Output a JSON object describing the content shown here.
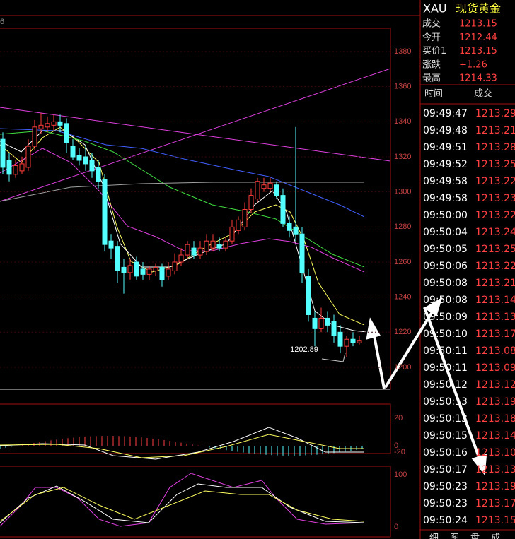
{
  "corner_label": "6",
  "header": {
    "symbol": "XAU",
    "name": "现货黄金"
  },
  "quote": [
    {
      "label": "成交",
      "value": "1213.15"
    },
    {
      "label": "今开",
      "value": "1212.44"
    },
    {
      "label": "买价1",
      "value": "1213.15"
    },
    {
      "label": "涨跌",
      "value": "+1.26"
    },
    {
      "label": "最高",
      "value": "1214.33"
    }
  ],
  "trades": {
    "columns": [
      "时间",
      "成交"
    ],
    "rows": [
      [
        "09:49:47",
        "1213.29"
      ],
      [
        "09:49:48",
        "1213.21"
      ],
      [
        "09:49:51",
        "1213.28"
      ],
      [
        "09:49:52",
        "1213.25"
      ],
      [
        "09:49:58",
        "1213.22"
      ],
      [
        "09:49:58",
        "1213.23"
      ],
      [
        "09:50:00",
        "1213.22"
      ],
      [
        "09:50:04",
        "1213.24"
      ],
      [
        "09:50:05",
        "1213.25"
      ],
      [
        "09:50:06",
        "1213.22"
      ],
      [
        "09:50:08",
        "1213.21"
      ],
      [
        "09:50:08",
        "1213.14"
      ],
      [
        "09:50:09",
        "1213.13"
      ],
      [
        "09:50:10",
        "1213.17"
      ],
      [
        "09:50:11",
        "1213.08"
      ],
      [
        "09:50:11",
        "1213.09"
      ],
      [
        "09:50:12",
        "1213.12"
      ],
      [
        "09:50:13",
        "1213.19"
      ],
      [
        "09:50:13",
        "1213.18"
      ],
      [
        "09:50:15",
        "1213.14"
      ],
      [
        "09:50:16",
        "1213.10"
      ],
      [
        "09:50:17",
        "1213.13"
      ],
      [
        "09:50:23",
        "1213.19"
      ],
      [
        "09:50:23",
        "1213.17"
      ],
      [
        "09:50:24",
        "1213.15"
      ]
    ]
  },
  "tabs": [
    "细",
    "图",
    "盘",
    "成"
  ],
  "chart_data": {
    "type": "candlestick",
    "ylim": [
      1187.5,
      1393.3
    ],
    "yticks": [
      1200,
      1220,
      1240,
      1260,
      1280,
      1300,
      1320,
      1340,
      1360,
      1380
    ],
    "grid": true,
    "up_color": "#ff3c3c",
    "down_color": "#54ffff",
    "open": [
      1330,
      1318,
      1310,
      1312,
      1314,
      1326,
      1336,
      1337,
      1338,
      1340,
      1339,
      1326,
      1321,
      1320,
      1318,
      1314,
      1307,
      1272,
      1269,
      1257,
      1254,
      1260,
      1256,
      1253,
      1255,
      1257,
      1252,
      1255,
      1260,
      1264,
      1268,
      1264,
      1266,
      1268,
      1270,
      1268,
      1272,
      1278,
      1280,
      1290,
      1296,
      1302,
      1302,
      1304,
      1298,
      1282,
      1280,
      1276,
      1252,
      1228,
      1222,
      1228,
      1226,
      1220,
      1212,
      1216,
      1214
    ],
    "close": [
      1314,
      1310,
      1315,
      1316,
      1326,
      1337,
      1338,
      1339,
      1340,
      1338,
      1328,
      1320,
      1318,
      1316,
      1312,
      1306,
      1270,
      1268,
      1255,
      1254,
      1258,
      1252,
      1253,
      1256,
      1257,
      1250,
      1256,
      1260,
      1264,
      1270,
      1264,
      1268,
      1272,
      1272,
      1268,
      1272,
      1280,
      1284,
      1290,
      1298,
      1306,
      1304,
      1305,
      1298,
      1282,
      1278,
      1276,
      1254,
      1230,
      1222,
      1228,
      1224,
      1218,
      1212,
      1216,
      1214,
      1215
    ],
    "high": [
      1334,
      1322,
      1318,
      1320,
      1330,
      1341,
      1345,
      1343,
      1344,
      1344,
      1342,
      1330,
      1325,
      1326,
      1322,
      1318,
      1310,
      1276,
      1272,
      1262,
      1262,
      1263,
      1260,
      1258,
      1259,
      1259,
      1260,
      1265,
      1268,
      1272,
      1272,
      1272,
      1276,
      1276,
      1274,
      1274,
      1284,
      1286,
      1294,
      1302,
      1308,
      1308,
      1308,
      1306,
      1302,
      1286,
      1337,
      1280,
      1256,
      1232,
      1234,
      1232,
      1230,
      1224,
      1218,
      1220,
      1218
    ],
    "low": [
      1310,
      1306,
      1308,
      1310,
      1312,
      1324,
      1333,
      1334,
      1335,
      1334,
      1322,
      1318,
      1315,
      1312,
      1308,
      1302,
      1266,
      1262,
      1248,
      1242,
      1250,
      1250,
      1250,
      1250,
      1252,
      1246,
      1250,
      1253,
      1258,
      1262,
      1262,
      1262,
      1264,
      1266,
      1266,
      1266,
      1270,
      1276,
      1278,
      1288,
      1294,
      1300,
      1300,
      1296,
      1280,
      1274,
      1272,
      1248,
      1226,
      1212,
      1220,
      1220,
      1214,
      1208,
      1206,
      1212,
      1213
    ],
    "annotation": "1202.89"
  },
  "macd": {
    "labels": [
      "20",
      "0",
      "-20"
    ]
  },
  "kdj": {
    "labels": [
      "100",
      "0"
    ]
  }
}
